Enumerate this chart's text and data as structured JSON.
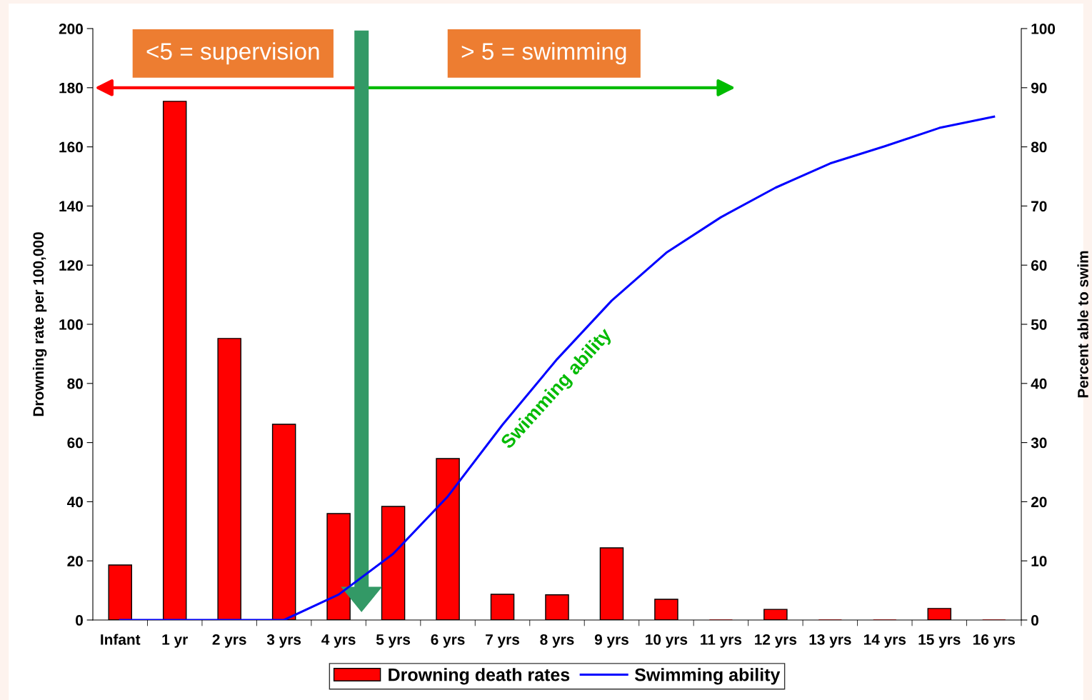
{
  "chart_data": {
    "type": "bar",
    "categories": [
      "Infant",
      "1 yr",
      "2 yrs",
      "3 yrs",
      "4 yrs",
      "5 yrs",
      "6 yrs",
      "7 yrs",
      "8 yrs",
      "9 yrs",
      "10 yrs",
      "11 yrs",
      "12 yrs",
      "13 yrs",
      "14 yrs",
      "15 yrs",
      "16 yrs"
    ],
    "series": [
      {
        "name": "Drowning death rates",
        "color": "#ff0000",
        "values": [
          18.6,
          175.4,
          95.2,
          66.2,
          36,
          38.4,
          54.6,
          8.7,
          8.5,
          24.4,
          7,
          0,
          3.6,
          0,
          0,
          3.9,
          0
        ]
      },
      {
        "name": "Swimming ability",
        "type": "line",
        "axis": "y2",
        "color": "#0000ff",
        "values": [
          0,
          0,
          0,
          0,
          4.3,
          11.2,
          20.9,
          33,
          44.1,
          54,
          62.1,
          68.1,
          73.1,
          77.2,
          80.1,
          83.2,
          85.1
        ]
      }
    ],
    "ylabel": "Drowning rate per 100,000",
    "y2label": "Percent able to swim",
    "ylim": [
      0,
      200
    ],
    "yticks": [
      0,
      20,
      40,
      60,
      80,
      100,
      120,
      140,
      160,
      180,
      200
    ],
    "y2lim": [
      0,
      100
    ],
    "y2ticks": [
      0,
      10,
      20,
      30,
      40,
      50,
      60,
      70,
      80,
      90,
      100
    ],
    "annotations": [
      "<5 = supervision",
      "> 5 = swimming",
      "Swimming ability"
    ],
    "grid": false,
    "legend": "bottom",
    "marker": "none",
    "line_style": "solid"
  }
}
